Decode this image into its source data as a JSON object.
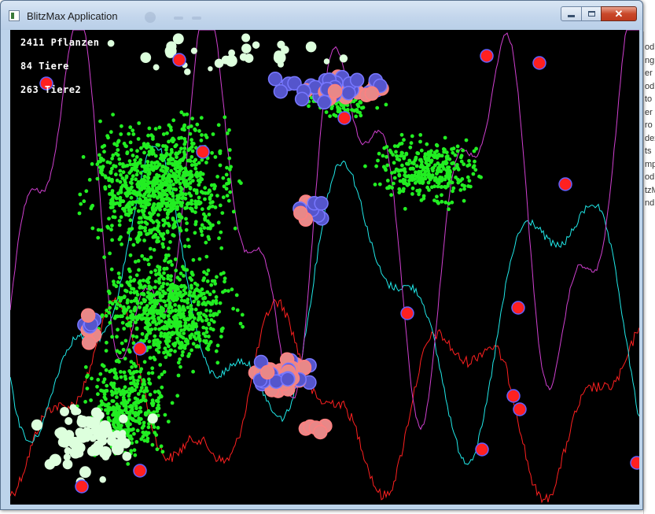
{
  "window": {
    "title": "BlitzMax Application",
    "close_label": "✕"
  },
  "hud": {
    "plants": "2411 Pflanzen",
    "animals": "84 Tiere",
    "animals2": "263 Tiere2"
  },
  "background_editor_fragments": [
    "od",
    "ng",
    "er",
    "od",
    "to",
    "er",
    "ro",
    "dex",
    "ts",
    "mp",
    "od",
    "tzM",
    "nd"
  ],
  "colors": {
    "canvas_bg": "#000000",
    "plant": "#22ee22",
    "plant_seed": "#ddffdd",
    "herbivore_fill": "#e88888",
    "herbivore_edge": "#ff8080",
    "herbivore_alt": "#5555cc",
    "predator": "#ff2020",
    "predator_edge": "#6060ff",
    "graph_plants": "#ff2020",
    "graph_animals": "#20e8e8",
    "graph_animals2": "#d040d0"
  }
}
